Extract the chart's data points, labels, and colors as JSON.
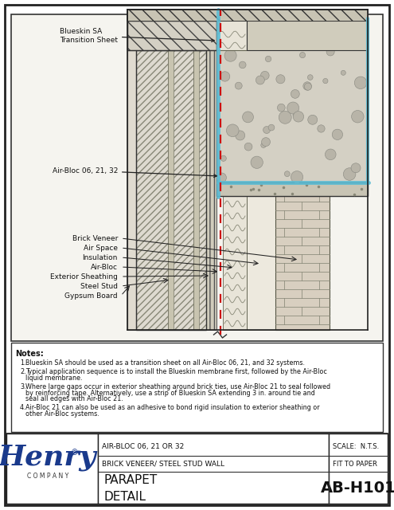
{
  "title": "PARAPET DETAIL",
  "drawing_number": "AB-H101",
  "scale": "SCALE:  N.T.S.",
  "fit": "FIT TO PAPER",
  "product_line1": "AIR-BLOC 06, 21 OR 32",
  "product_line2": "BRICK VENEER/ STEEL STUD WALL",
  "company": "Henry",
  "company_sub": "C O M P A N Y",
  "bg_color": "#ffffff",
  "henry_blue": "#1a3a8c",
  "notes_header": "Notes:",
  "note1": "Blueskin SA should be used as a transition sheet on all Air-Bloc 06, 21, and 32 systems.",
  "note2": "Typical application sequence is to install the Blueskin membrane first, followed by the Air-Bloc liquid membrane.",
  "note3": "Where large gaps occur in exterior sheathing around brick ties, use Air-Bloc 21 to seal followed by reinforcing tape.  Alternatively, use a strip of Blueskin SA extending 3 in. around tie and seal all edges with Air-Bloc 21.",
  "note4": "Air-Bloc 21 can also be used as an adhesive to bond rigid insulation to exterior sheathing or other Air-Bloc systems.",
  "lbl_blueskin": "Blueskin SA\nTransition Sheet",
  "lbl_airbloc": "Air-Bloc 06, 21, 32",
  "lbl_brick": "Brick Veneer",
  "lbl_airspace": "Air Space",
  "lbl_insulation": "Insulation",
  "lbl_airblocwall": "Air-Bloc",
  "lbl_sheathing": "Exterior Sheathing",
  "lbl_stud": "Steel Stud",
  "lbl_gypsum": "Gypsum Board",
  "blue_color": "#5bbcd4",
  "red_color": "#cc1111",
  "hatch_color": "#777766",
  "brick_color": "#d8cfc0",
  "stone_color": "#b8b4a8"
}
